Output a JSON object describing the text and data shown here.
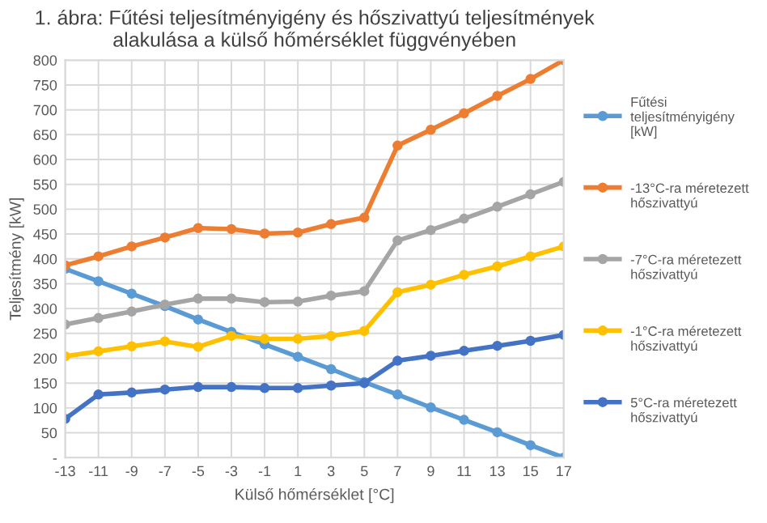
{
  "chart_data": {
    "type": "line",
    "title": "1. ábra: Fűtési teljesítményigény és hőszivattyú teljesítmények\nalakulása a külső hőmérséklet függvényében",
    "xlabel": "Külső hőmérséklet [°C]",
    "ylabel": "Teljesítmény [kW]",
    "x": [
      -13,
      -11,
      -9,
      -7,
      -5,
      -3,
      -1,
      1,
      3,
      5,
      7,
      9,
      11,
      13,
      15,
      17
    ],
    "series": [
      {
        "name": "Fűtési teljesítményigény [kW]",
        "color": "#5b9bd5",
        "values": [
          380,
          355,
          330,
          305,
          278,
          253,
          228,
          203,
          178,
          152,
          127,
          101,
          76,
          51,
          25,
          0
        ]
      },
      {
        "name": "-13°C-ra méretezett hőszivattyú",
        "color": "#ed7d31",
        "values": [
          387,
          405,
          425,
          443,
          462,
          460,
          451,
          453,
          470,
          483,
          628,
          660,
          693,
          728,
          762,
          800
        ]
      },
      {
        "name": "-7°C-ra méretezett hőszivattyú",
        "color": "#a5a5a5",
        "values": [
          268,
          281,
          294,
          308,
          320,
          320,
          313,
          314,
          326,
          335,
          437,
          458,
          481,
          505,
          530,
          555
        ]
      },
      {
        "name": "-1°C-ra méretezett hőszivattyú",
        "color": "#ffc000",
        "values": [
          204,
          214,
          224,
          234,
          223,
          245,
          239,
          239,
          245,
          255,
          333,
          348,
          368,
          385,
          405,
          425
        ]
      },
      {
        "name": "5°C-ra méretezett hőszivattyú",
        "color": "#4472c4",
        "values": [
          78,
          127,
          131,
          137,
          142,
          142,
          140,
          140,
          145,
          150,
          195,
          205,
          215,
          225,
          235,
          247
        ]
      }
    ],
    "xlim": [
      -13,
      17
    ],
    "xticks": [
      -13,
      -11,
      -9,
      -7,
      -5,
      -3,
      -1,
      1,
      3,
      5,
      7,
      9,
      11,
      13,
      15,
      17
    ],
    "ylim": [
      0,
      800
    ],
    "yticks": [
      {
        "value": 0,
        "label": "-"
      },
      50,
      100,
      150,
      200,
      250,
      300,
      350,
      400,
      450,
      500,
      550,
      600,
      650,
      700,
      750,
      800
    ],
    "grid": true,
    "legend": "right",
    "marker": "circle",
    "line_style": "solid"
  }
}
